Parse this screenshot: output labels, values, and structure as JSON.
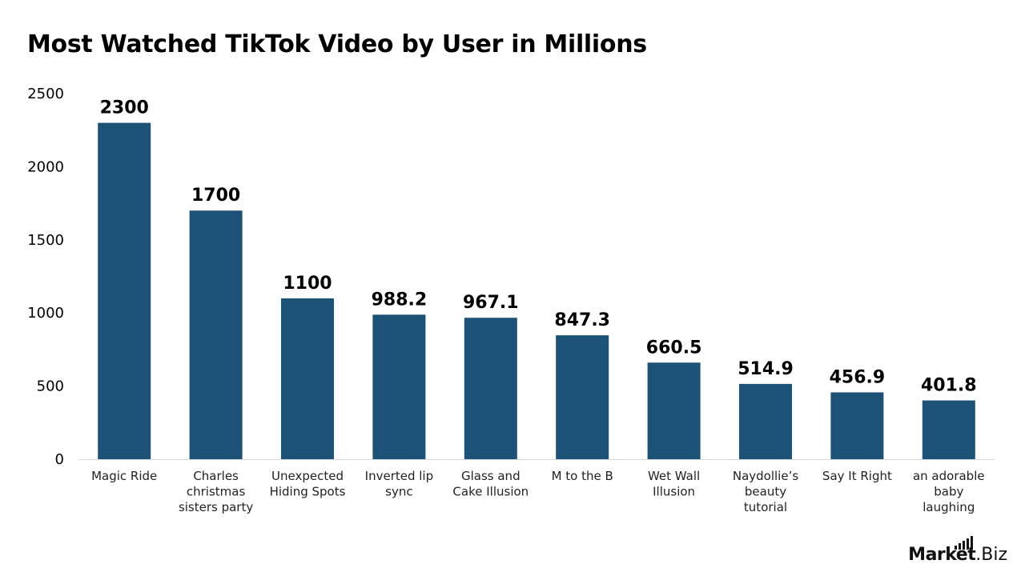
{
  "chart_data": {
    "type": "bar",
    "title": "Most Watched TikTok Video by User in Millions",
    "xlabel": "",
    "ylabel": "",
    "ylim": [
      0,
      2500
    ],
    "yticks": [
      0,
      500,
      1000,
      1500,
      2000,
      2500
    ],
    "grid": false,
    "legend": "none",
    "bar_color": "#1B5276",
    "categories": [
      "Magic Ride",
      "Charles christmas sisters party",
      "Unexpected Hiding Spots",
      "Inverted lip sync",
      "Glass and Cake Illusion",
      "M to the B",
      "Wet Wall Illusion",
      "Naydollie’s beauty tutorial",
      "Say It Right",
      "an adorable baby laughing"
    ],
    "category_lines": [
      [
        "Magic Ride"
      ],
      [
        "Charles",
        "christmas",
        "sisters party"
      ],
      [
        "Unexpected",
        "Hiding Spots"
      ],
      [
        "Inverted lip",
        "sync"
      ],
      [
        "Glass and",
        "Cake Illusion"
      ],
      [
        "M to the B"
      ],
      [
        "Wet Wall",
        "Illusion"
      ],
      [
        "Naydollie’s",
        "beauty",
        "tutorial"
      ],
      [
        "Say It Right"
      ],
      [
        "an adorable",
        "baby",
        "laughing"
      ]
    ],
    "values": [
      2300,
      1700,
      1100,
      988.2,
      967.1,
      847.3,
      660.5,
      514.9,
      456.9,
      401.8
    ],
    "data_labels": [
      "2300",
      "1700",
      "1100",
      "988.2",
      "967.1",
      "847.3",
      "660.5",
      "514.9",
      "456.9",
      "401.8"
    ]
  },
  "logo": {
    "part_a": "Market",
    "part_b": ".Biz"
  }
}
